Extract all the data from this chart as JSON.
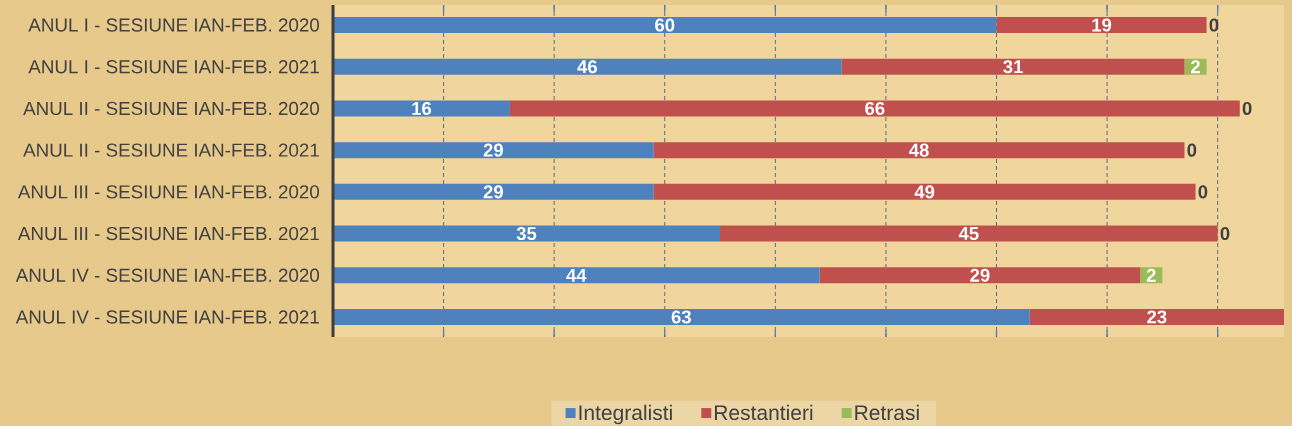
{
  "chart_data": {
    "type": "bar",
    "orientation": "horizontal",
    "stacked": true,
    "categories": [
      "ANUL I - SESIUNE IAN-FEB. 2020",
      "ANUL I - SESIUNE IAN-FEB. 2021",
      "ANUL II - SESIUNE IAN-FEB. 2020",
      "ANUL II - SESIUNE IAN-FEB. 2021",
      "ANUL III - SESIUNE IAN-FEB. 2020",
      "ANUL III - SESIUNE IAN-FEB. 2021",
      "ANUL IV - SESIUNE IAN-FEB. 2020",
      "ANUL IV - SESIUNE IAN-FEB. 2021"
    ],
    "series": [
      {
        "name": "Integralisti",
        "color": "#4f81bd",
        "values": [
          60,
          46,
          16,
          29,
          29,
          35,
          44,
          63
        ]
      },
      {
        "name": "Restantieri",
        "color": "#c0504d",
        "values": [
          19,
          31,
          66,
          48,
          49,
          45,
          29,
          23
        ]
      },
      {
        "name": "Retrasi",
        "color": "#9bbb59",
        "values": [
          0,
          2,
          0,
          0,
          0,
          0,
          2,
          null
        ]
      }
    ],
    "xlim": [
      0,
      86
    ],
    "xticks": [
      {
        "value": 10,
        "label": null
      },
      {
        "value": 20,
        "label": null
      },
      {
        "value": 30,
        "label": null
      },
      {
        "value": 40,
        "label": null
      },
      {
        "value": 50,
        "label": null
      },
      {
        "value": 60,
        "label": null
      },
      {
        "value": 70,
        "label": null
      },
      {
        "value": 80,
        "label": null
      }
    ],
    "tick_labels": "y",
    "grid": "x",
    "legend": "bottom",
    "data_labels": true
  }
}
